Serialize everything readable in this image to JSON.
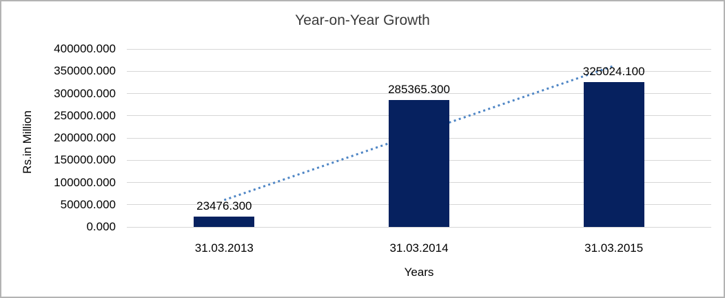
{
  "chart": {
    "colors": {
      "bar": "#06215f",
      "trendline": "#4f86c5",
      "gridline": "#d6d6d6",
      "title_text": "#3a3a3a",
      "label_text": "#000000",
      "frame_border": "#b3b3b3",
      "background": "#ffffff"
    }
  },
  "chart_data": {
    "type": "bar",
    "title": "Year-on-Year Growth",
    "xlabel": "Years",
    "ylabel": "Rs.in Million",
    "categories": [
      "31.03.2013",
      "31.03.2014",
      "31.03.2015"
    ],
    "values": [
      23476.3,
      285365.3,
      325024.1
    ],
    "data_labels": [
      "23476.300",
      "285365.300",
      "325024.100"
    ],
    "ylim": [
      0,
      400000
    ],
    "ytick_step": 50000,
    "ytick_labels": [
      "0.000",
      "50000.000",
      "100000.000",
      "150000.000",
      "200000.000",
      "250000.000",
      "300000.000",
      "350000.000",
      "400000.000"
    ],
    "grid": true,
    "legend": false,
    "trendline": {
      "type": "linear",
      "style": "dotted"
    }
  }
}
